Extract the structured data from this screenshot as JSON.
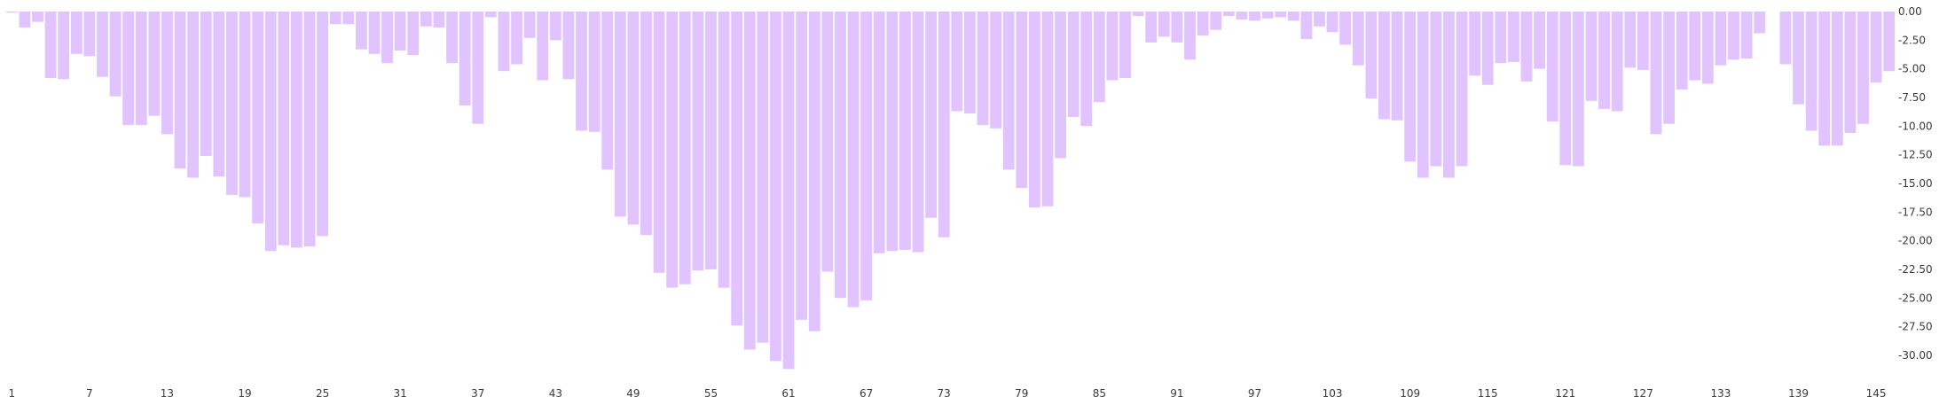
{
  "chart_data": {
    "type": "bar",
    "title": "",
    "xlabel": "",
    "ylabel": "",
    "bar_color": "#e1c4ff",
    "ylim": [
      -31.5,
      0
    ],
    "y_ticks": [
      0,
      -2.5,
      -5,
      -7.5,
      -10,
      -12.5,
      -15,
      -17.5,
      -20,
      -22.5,
      -25,
      -27.5,
      -30
    ],
    "y_tick_labels": [
      "0.00",
      "-2.50",
      "-5.00",
      "-7.50",
      "-10.00",
      "-12.50",
      "-15.00",
      "-17.50",
      "-20.00",
      "-22.50",
      "-25.00",
      "-27.50",
      "-30.00"
    ],
    "x_tick_labels": [
      "1",
      "7",
      "13",
      "19",
      "25",
      "31",
      "37",
      "43",
      "49",
      "55",
      "61",
      "67",
      "73",
      "79",
      "85",
      "91",
      "97",
      "103",
      "109",
      "115",
      "121",
      "127",
      "133",
      "139",
      "145"
    ],
    "categories": [
      1,
      2,
      3,
      4,
      5,
      6,
      7,
      8,
      9,
      10,
      11,
      12,
      13,
      14,
      15,
      16,
      17,
      18,
      19,
      20,
      21,
      22,
      23,
      24,
      25,
      26,
      27,
      28,
      29,
      30,
      31,
      32,
      33,
      34,
      35,
      36,
      37,
      38,
      39,
      40,
      41,
      42,
      43,
      44,
      45,
      46,
      47,
      48,
      49,
      50,
      51,
      52,
      53,
      54,
      55,
      56,
      57,
      58,
      59,
      60,
      61,
      62,
      63,
      64,
      65,
      66,
      67,
      68,
      69,
      70,
      71,
      72,
      73,
      74,
      75,
      76,
      77,
      78,
      79,
      80,
      81,
      82,
      83,
      84,
      85,
      86,
      87,
      88,
      89,
      90,
      91,
      92,
      93,
      94,
      95,
      96,
      97,
      98,
      99,
      100,
      101,
      102,
      103,
      104,
      105,
      106,
      107,
      108,
      109,
      110,
      111,
      112,
      113,
      114,
      115,
      116,
      117,
      118,
      119,
      120,
      121,
      122,
      123,
      124,
      125,
      126,
      127,
      128,
      129,
      130,
      131,
      132,
      133,
      134,
      135,
      136,
      137,
      138,
      139,
      140,
      141,
      142,
      143,
      144,
      145,
      146
    ],
    "values": [
      -0.1,
      -1.4,
      -0.9,
      -5.8,
      -5.9,
      -3.7,
      -3.9,
      -5.7,
      -7.4,
      -9.9,
      -9.9,
      -9.1,
      -10.7,
      -13.7,
      -14.5,
      -12.6,
      -14.4,
      -16.0,
      -16.2,
      -18.5,
      -20.9,
      -20.4,
      -20.6,
      -20.5,
      -19.6,
      -1.1,
      -1.1,
      -3.3,
      -3.7,
      -4.5,
      -3.4,
      -3.8,
      -1.3,
      -1.4,
      -4.5,
      -8.2,
      -9.8,
      -0.5,
      -5.2,
      -4.6,
      -2.3,
      -6.0,
      -2.5,
      -5.9,
      -10.4,
      -10.5,
      -13.8,
      -17.9,
      -18.6,
      -19.5,
      -22.8,
      -24.1,
      -23.8,
      -22.6,
      -22.5,
      -24.1,
      -27.4,
      -29.5,
      -28.9,
      -30.5,
      -31.2,
      -26.9,
      -27.9,
      -22.7,
      -25.0,
      -25.8,
      -25.2,
      -21.1,
      -20.9,
      -20.8,
      -21.0,
      -18.0,
      -19.7,
      -8.7,
      -8.9,
      -9.9,
      -10.2,
      -13.8,
      -15.4,
      -17.1,
      -17.0,
      -12.8,
      -9.2,
      -10.0,
      -7.9,
      -6.0,
      -5.8,
      -0.4,
      -2.7,
      -2.2,
      -2.7,
      -4.2,
      -2.1,
      -1.6,
      -0.4,
      -0.7,
      -0.8,
      -0.6,
      -0.5,
      -0.8,
      -2.4,
      -1.3,
      -1.8,
      -2.9,
      -4.7,
      -7.6,
      -9.4,
      -9.5,
      -13.1,
      -14.5,
      -13.5,
      -14.5,
      -13.5,
      -5.6,
      -6.4,
      -4.5,
      -4.4,
      -6.1,
      -5.0,
      -9.6,
      -13.4,
      -13.5,
      -7.8,
      -8.5,
      -8.7,
      -4.9,
      -5.1,
      -10.7,
      -9.8,
      -6.8,
      -6.0,
      -6.3,
      -4.7,
      -4.2,
      -4.1,
      -1.9,
      null,
      -4.6,
      -8.1,
      -10.4,
      -11.7,
      -11.7,
      -10.6,
      -9.8,
      -6.2,
      -5.2
    ],
    "grid": false,
    "legend": "none"
  }
}
